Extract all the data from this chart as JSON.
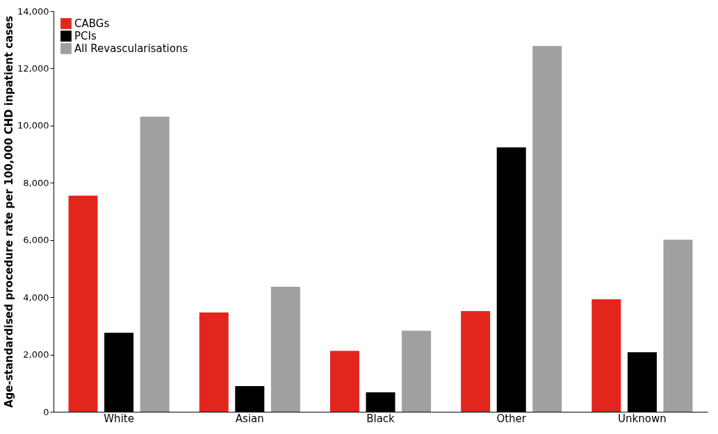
{
  "chart_data": {
    "type": "bar",
    "ylabel": "Age-standardised procedure rate per 100,000 CHD inpatient cases",
    "categories": [
      "White",
      "Asian",
      "Black",
      "Other",
      "Unknown"
    ],
    "series": [
      {
        "name": "CABGs",
        "color": "#e3261d",
        "values": [
          7550,
          3470,
          2130,
          3520,
          3930
        ]
      },
      {
        "name": "PCIs",
        "color": "#000000",
        "values": [
          2760,
          900,
          680,
          9240,
          2080
        ]
      },
      {
        "name": "All Revascularisations",
        "color": "#a0a0a0",
        "values": [
          10310,
          4370,
          2830,
          12780,
          6010
        ]
      }
    ],
    "ylim": [
      0,
      14000
    ],
    "yticks": [
      0,
      {
        "value": 2000,
        "label": "2,000"
      },
      {
        "value": 4000,
        "label": "4,000"
      },
      {
        "value": 6000,
        "label": "6,000"
      },
      {
        "value": 8000,
        "label": "8,000"
      },
      {
        "value": 10000,
        "label": "10,000"
      },
      {
        "value": 12000,
        "label": "12,000"
      },
      {
        "value": 14000,
        "label": "14,000"
      }
    ],
    "grid": false,
    "legend": "top left"
  }
}
